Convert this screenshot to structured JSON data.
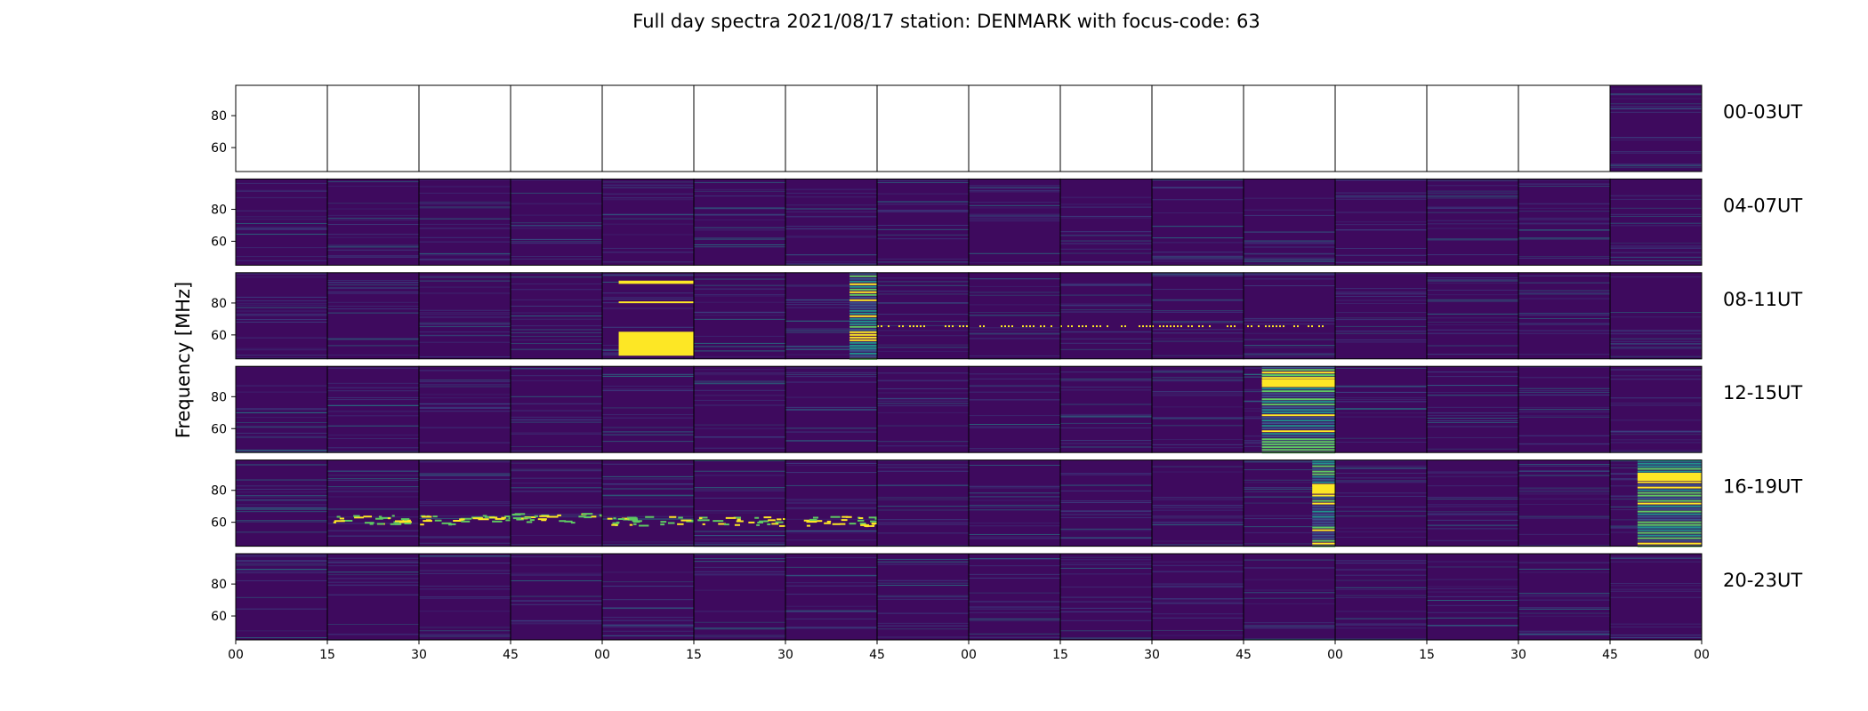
{
  "chart_data": {
    "type": "heatmap",
    "title": "Full day spectra 2021/08/17 station: DENMARK with focus-code: 63",
    "ylabel": "Frequency [MHz]",
    "xlabel": "",
    "y_ticks": [
      80,
      60
    ],
    "y_range_mhz": [
      45,
      99
    ],
    "x_tick_labels": [
      "00",
      "15",
      "30",
      "45",
      "00",
      "15",
      "30",
      "45",
      "00",
      "15",
      "30",
      "45",
      "00",
      "15",
      "30",
      "45",
      "00"
    ],
    "panels_per_row": 16,
    "panel_minutes": 15,
    "colormap": [
      "#440154",
      "#3b528b",
      "#21918c",
      "#5ec962",
      "#fde725"
    ],
    "background_color": "#3e0a5e",
    "rows": [
      {
        "label": "00-03UT",
        "panels": [
          {
            "empty": true
          },
          {
            "empty": true
          },
          {
            "empty": true
          },
          {
            "empty": true
          },
          {
            "empty": true
          },
          {
            "empty": true
          },
          {
            "empty": true
          },
          {
            "empty": true
          },
          {
            "empty": true
          },
          {
            "empty": true
          },
          {
            "empty": true
          },
          {
            "empty": true
          },
          {
            "empty": true
          },
          {
            "empty": true
          },
          {
            "empty": true
          },
          {
            "level": 0.25
          }
        ]
      },
      {
        "label": "04-07UT",
        "panels": [
          {
            "level": 0.2
          },
          {
            "level": 0.15
          },
          {
            "level": 0.2
          },
          {
            "level": 0.15
          },
          {
            "level": 0.2
          },
          {
            "level": 0.2
          },
          {
            "level": 0.25
          },
          {
            "level": 0.15
          },
          {
            "level": 0.2
          },
          {
            "level": 0.15
          },
          {
            "level": 0.15
          },
          {
            "level": 0.2
          },
          {
            "level": 0.15
          },
          {
            "level": 0.2
          },
          {
            "level": 0.2
          },
          {
            "level": 0.2
          }
        ]
      },
      {
        "label": "08-11UT",
        "panels": [
          {
            "level": 0.25
          },
          {
            "level": 0.2
          },
          {
            "level": 0.25
          },
          {
            "level": 0.2
          },
          {
            "level": 0.3,
            "yellow_bands_mhz": [
              [
                47,
                62
              ],
              [
                80,
                81
              ],
              [
                92,
                94
              ]
            ]
          },
          {
            "level": 0.2
          },
          {
            "level": 0.3,
            "stripes": true,
            "stripe_x_range": [
              0.7,
              1.0
            ]
          },
          {
            "level": 0.15,
            "yellow_line_mhz": 66
          },
          {
            "level": 0.15,
            "yellow_line_mhz": 66
          },
          {
            "level": 0.15,
            "yellow_line_mhz": 66
          },
          {
            "level": 0.2,
            "yellow_line_mhz": 66
          },
          {
            "level": 0.2,
            "yellow_line_mhz": 66
          },
          {
            "level": 0.15
          },
          {
            "level": 0.2
          },
          {
            "level": 0.2
          },
          {
            "level": 0.2
          }
        ]
      },
      {
        "label": "12-15UT",
        "panels": [
          {
            "level": 0.2
          },
          {
            "level": 0.15
          },
          {
            "level": 0.15
          },
          {
            "level": 0.15
          },
          {
            "level": 0.1
          },
          {
            "level": 0.15
          },
          {
            "level": 0.2
          },
          {
            "level": 0.15
          },
          {
            "level": 0.05
          },
          {
            "level": 0.15
          },
          {
            "level": 0.2
          },
          {
            "level": 0.3,
            "yellow_bands_mhz": [
              [
                86,
                91
              ]
            ],
            "stripes": true,
            "stripe_x_range": [
              0.2,
              1.0
            ]
          },
          {
            "level": 0.2
          },
          {
            "level": 0.2
          },
          {
            "level": 0.2
          },
          {
            "level": 0.2
          }
        ]
      },
      {
        "label": "16-19UT",
        "panels": [
          {
            "level": 0.25
          },
          {
            "level": 0.2,
            "burst_mhz": 62
          },
          {
            "level": 0.2,
            "burst_mhz": 62
          },
          {
            "level": 0.2,
            "burst_mhz": 63
          },
          {
            "level": 0.15,
            "burst_mhz": 61
          },
          {
            "level": 0.2,
            "burst_mhz": 61
          },
          {
            "level": 0.15,
            "burst_mhz": 61
          },
          {
            "level": 0.15
          },
          {
            "level": 0.15
          },
          {
            "level": 0.15
          },
          {
            "level": 0.15
          },
          {
            "level": 0.2,
            "stripes": true,
            "stripe_x_range": [
              0.75,
              1.0
            ],
            "yellow_bands_mhz": [
              [
                78,
                84
              ]
            ]
          },
          {
            "level": 0.2
          },
          {
            "level": 0.2
          },
          {
            "level": 0.2
          },
          {
            "level": 0.3,
            "yellow_bands_mhz": [
              [
                86,
                91
              ]
            ],
            "stripes": true,
            "stripe_x_range": [
              0.3,
              1.0
            ]
          }
        ]
      },
      {
        "label": "20-23UT",
        "panels": [
          {
            "level": 0.15
          },
          {
            "level": 0.15
          },
          {
            "level": 0.15
          },
          {
            "level": 0.15
          },
          {
            "level": 0.15
          },
          {
            "level": 0.15
          },
          {
            "level": 0.15
          },
          {
            "level": 0.15
          },
          {
            "level": 0.15
          },
          {
            "level": 0.15
          },
          {
            "level": 0.15
          },
          {
            "level": 0.15
          },
          {
            "level": 0.15
          },
          {
            "level": 0.15
          },
          {
            "level": 0.15
          },
          {
            "level": 0.15
          }
        ]
      }
    ]
  }
}
